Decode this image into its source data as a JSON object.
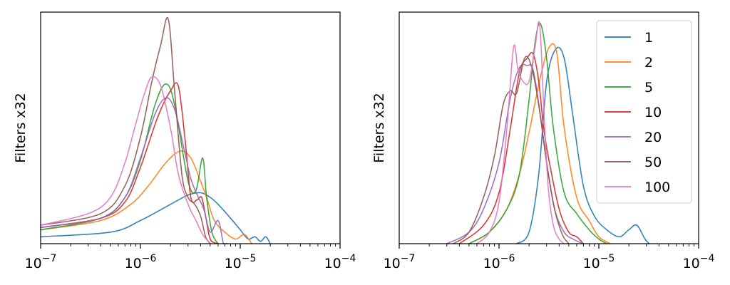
{
  "chart_data": [
    {
      "type": "line",
      "xscale": "log",
      "xlim": [
        1e-07,
        0.0001
      ],
      "ylim": [
        0,
        1
      ],
      "xticks": [
        "10^-7",
        "10^-6",
        "10^-5",
        "10^-4"
      ],
      "ylabel": "Filters x32",
      "legend": false,
      "series": [
        {
          "name": "1",
          "color": "#1f77b4",
          "x": [
            1e-07,
            5e-07,
            1e-06,
            2e-06,
            3e-06,
            4e-06,
            5e-06,
            6e-06,
            8e-06,
            1e-05,
            1.2e-05,
            1.4e-05,
            1.6e-05,
            1.8e-05,
            2e-05
          ],
          "y": [
            0.03,
            0.05,
            0.1,
            0.17,
            0.21,
            0.22,
            0.2,
            0.17,
            0.11,
            0.06,
            0.02,
            0.03,
            0.01,
            0.03,
            0.0
          ]
        },
        {
          "name": "2",
          "color": "#ff7f0e",
          "x": [
            1e-07,
            4e-07,
            8e-07,
            1.2e-06,
            1.8e-06,
            2.5e-06,
            3.2e-06,
            4e-06,
            4.6e-06,
            5.5e-06,
            7e-06,
            9e-06,
            1.1e-05,
            1.3e-05
          ],
          "y": [
            0.06,
            0.1,
            0.17,
            0.25,
            0.35,
            0.4,
            0.37,
            0.27,
            0.2,
            0.1,
            0.05,
            0.02,
            0.04,
            0.0
          ]
        },
        {
          "name": "5",
          "color": "#2ca02c",
          "x": [
            1e-07,
            4e-07,
            7e-07,
            1e-06,
            1.4e-06,
            1.8e-06,
            2.2e-06,
            3e-06,
            3.6e-06,
            4.2e-06,
            4.6e-06,
            5.2e-06,
            6e-06
          ],
          "y": [
            0.06,
            0.11,
            0.2,
            0.36,
            0.6,
            0.69,
            0.6,
            0.27,
            0.23,
            0.37,
            0.2,
            0.05,
            0.0
          ]
        },
        {
          "name": "10",
          "color": "#d62728",
          "x": [
            1e-07,
            4e-07,
            7e-07,
            1e-06,
            1.5e-06,
            2e-06,
            2.4e-06,
            2.8e-06,
            3.2e-06,
            3.7e-06,
            4.1e-06,
            4.5e-06,
            5e-06,
            6e-06
          ],
          "y": [
            0.07,
            0.11,
            0.18,
            0.33,
            0.55,
            0.66,
            0.68,
            0.45,
            0.2,
            0.19,
            0.2,
            0.12,
            0.02,
            0.0
          ]
        },
        {
          "name": "20",
          "color": "#9467bd",
          "x": [
            1e-07,
            4e-07,
            7e-07,
            1e-06,
            1.4e-06,
            1.8e-06,
            2.2e-06,
            2.7e-06,
            3.2e-06,
            3.8e-06,
            4.3e-06,
            5e-06,
            6e-06,
            6.8e-06,
            7.5e-06
          ],
          "y": [
            0.07,
            0.11,
            0.2,
            0.37,
            0.56,
            0.63,
            0.58,
            0.42,
            0.28,
            0.2,
            0.15,
            0.05,
            0.1,
            0.0,
            0.0
          ]
        },
        {
          "name": "50",
          "color": "#8c564b",
          "x": [
            1e-07,
            4e-07,
            7e-07,
            1e-06,
            1.3e-06,
            1.6e-06,
            1.9e-06,
            2.2e-06,
            2.6e-06,
            3e-06,
            3.5e-06,
            4e-06,
            4.5e-06,
            5e-06
          ],
          "y": [
            0.08,
            0.13,
            0.25,
            0.46,
            0.7,
            0.86,
            0.97,
            0.66,
            0.3,
            0.2,
            0.17,
            0.12,
            0.03,
            0.0
          ]
        },
        {
          "name": "100",
          "color": "#e377c2",
          "x": [
            1e-07,
            3e-07,
            5e-07,
            7e-07,
            9e-07,
            1.1e-06,
            1.3e-06,
            1.6e-06,
            2e-06,
            2.4e-06,
            3e-06,
            3.6e-06,
            4.2e-06,
            5e-06
          ],
          "y": [
            0.08,
            0.13,
            0.2,
            0.35,
            0.52,
            0.65,
            0.72,
            0.68,
            0.5,
            0.3,
            0.17,
            0.1,
            0.04,
            0.0
          ]
        }
      ]
    },
    {
      "type": "line",
      "xscale": "log",
      "xlim": [
        1e-07,
        0.0001
      ],
      "ylim": [
        0,
        1
      ],
      "xticks": [
        "10^-7",
        "10^-6",
        "10^-5",
        "10^-4"
      ],
      "ylabel": "Filters x32",
      "legend": true,
      "legend_position": "top-right",
      "series": [
        {
          "name": "1",
          "color": "#1f77b4",
          "x": [
            1.5e-06,
            2e-06,
            2.5e-06,
            3e-06,
            3.7e-06,
            4.5e-06,
            5.5e-06,
            7e-06,
            9e-06,
            1.2e-05,
            1.6e-05,
            2e-05,
            2.4e-05,
            2.9e-05,
            3.2e-05
          ],
          "y": [
            0.0,
            0.05,
            0.3,
            0.7,
            0.84,
            0.8,
            0.55,
            0.25,
            0.12,
            0.06,
            0.03,
            0.06,
            0.08,
            0.02,
            0.0
          ]
        },
        {
          "name": "2",
          "color": "#ff7f0e",
          "x": [
            5e-07,
            8e-07,
            1.2e-06,
            1.6e-06,
            2e-06,
            2.6e-06,
            3.2e-06,
            3.8e-06,
            4.5e-06,
            6e-06,
            8e-06,
            1e-05,
            1.3e-05
          ],
          "y": [
            0.0,
            0.05,
            0.15,
            0.3,
            0.48,
            0.72,
            0.85,
            0.82,
            0.5,
            0.2,
            0.1,
            0.03,
            0.0
          ]
        },
        {
          "name": "5",
          "color": "#2ca02c",
          "x": [
            5e-07,
            8e-07,
            1.2e-06,
            1.6e-06,
            2e-06,
            2.3e-06,
            2.6e-06,
            3e-06,
            3.5e-06,
            4.5e-06,
            6e-06,
            8e-06,
            1e-05,
            1.2e-05
          ],
          "y": [
            0.0,
            0.05,
            0.15,
            0.3,
            0.62,
            0.87,
            0.95,
            0.8,
            0.5,
            0.22,
            0.13,
            0.06,
            0.02,
            0.0
          ]
        },
        {
          "name": "10",
          "color": "#d62728",
          "x": [
            4e-07,
            7e-07,
            1e-06,
            1.3e-06,
            1.6e-06,
            1.9e-06,
            2.2e-06,
            2.5e-06,
            2.8e-06,
            3.2e-06,
            4e-06,
            5e-06,
            6e-06,
            7e-06
          ],
          "y": [
            0.0,
            0.08,
            0.22,
            0.5,
            0.74,
            0.8,
            0.82,
            0.7,
            0.5,
            0.35,
            0.15,
            0.05,
            0.03,
            0.0
          ]
        },
        {
          "name": "20",
          "color": "#9467bd",
          "x": [
            3e-07,
            5e-07,
            7e-07,
            1e-06,
            1.3e-06,
            1.6e-06,
            1.9e-06,
            2.2e-06,
            2.6e-06,
            3e-06,
            3.6e-06,
            4.5e-06,
            5.5e-06,
            7e-06
          ],
          "y": [
            0.0,
            0.05,
            0.15,
            0.35,
            0.63,
            0.76,
            0.77,
            0.75,
            0.55,
            0.35,
            0.15,
            0.05,
            0.02,
            0.0
          ]
        },
        {
          "name": "50",
          "color": "#8c564b",
          "x": [
            3.5e-07,
            5e-07,
            7e-07,
            9e-07,
            1.1e-06,
            1.3e-06,
            1.5e-06,
            1.8e-06,
            2.1e-06,
            2.5e-06,
            3e-06,
            3.6e-06,
            4.3e-06,
            5e-06
          ],
          "y": [
            0.0,
            0.05,
            0.2,
            0.38,
            0.6,
            0.66,
            0.65,
            0.8,
            0.77,
            0.6,
            0.35,
            0.15,
            0.04,
            0.0
          ]
        },
        {
          "name": "100",
          "color": "#e377c2",
          "x": [
            6e-07,
            8e-07,
            1e-06,
            1.2e-06,
            1.4e-06,
            1.55e-06,
            1.75e-06,
            2e-06,
            2.3e-06,
            2.55e-06,
            2.8e-06,
            3.1e-06,
            3.5e-06,
            4e-06,
            4.5e-06
          ],
          "y": [
            0.0,
            0.05,
            0.18,
            0.5,
            0.85,
            0.75,
            0.7,
            0.7,
            0.85,
            0.95,
            0.6,
            0.25,
            0.08,
            0.02,
            0.0
          ]
        }
      ]
    }
  ]
}
